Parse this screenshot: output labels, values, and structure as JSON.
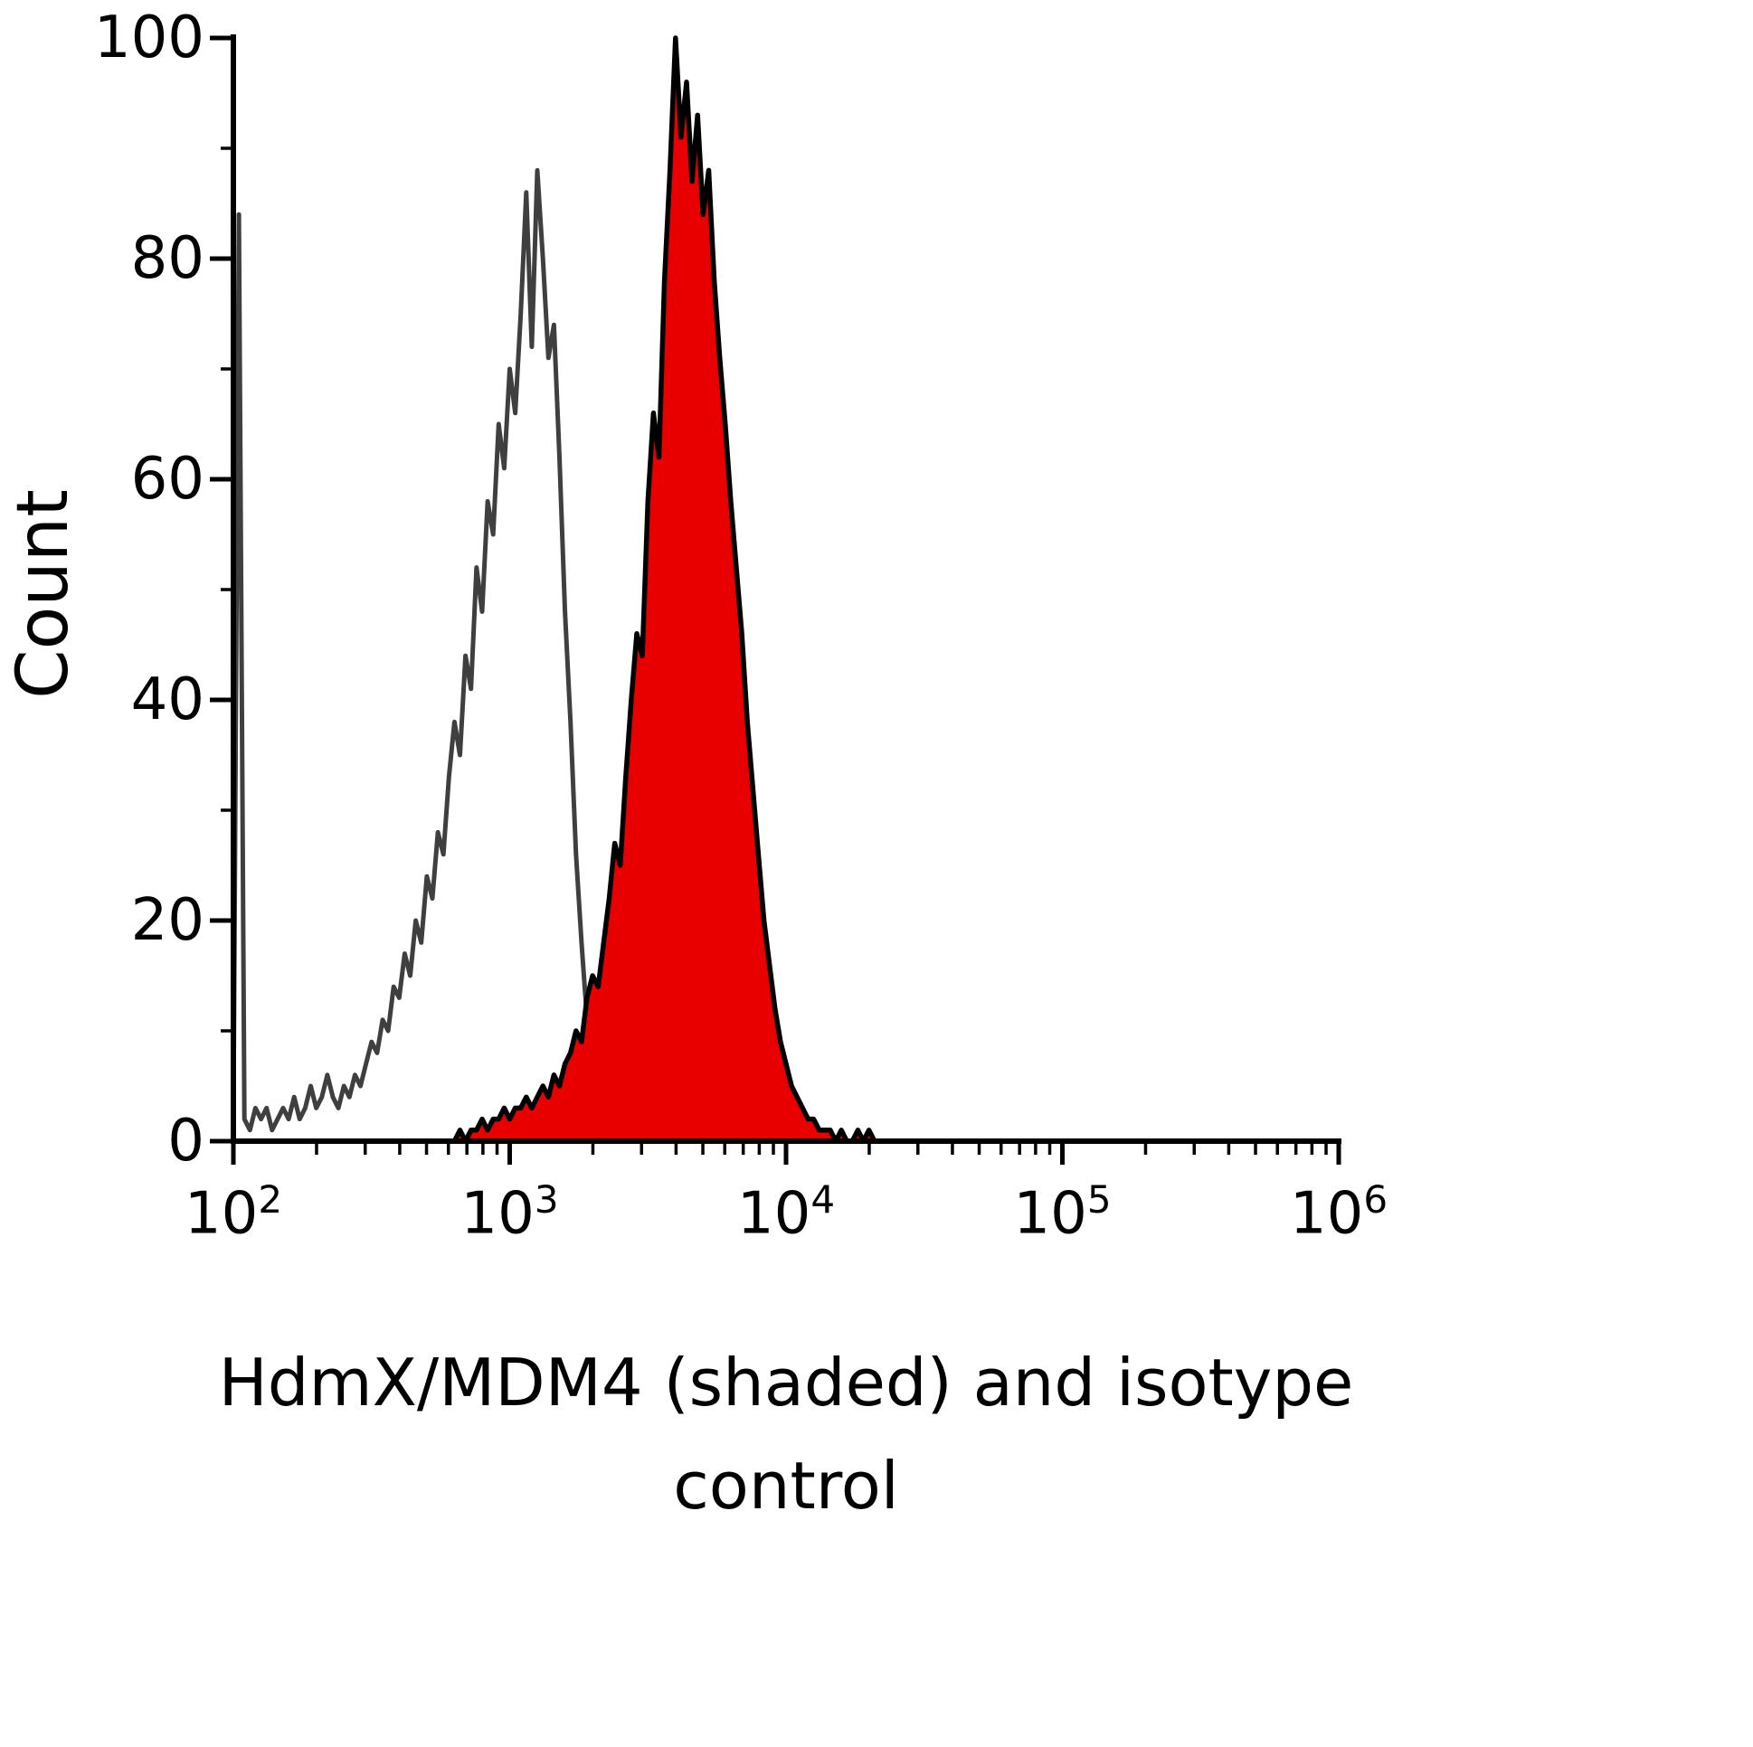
{
  "figure": {
    "background": "#ffffff",
    "y_axis": {
      "title": "Count",
      "min": 0,
      "max": 100,
      "major_ticks": [
        0,
        20,
        40,
        60,
        80,
        100
      ],
      "minor_ticks": [
        10,
        30,
        50,
        70,
        90
      ]
    },
    "x_axis": {
      "title_line1": "HdmX/MDM4 (shaded) and isotype",
      "title_line2": "control",
      "scale": "log10",
      "decade_exponents": [
        2,
        3,
        4,
        5,
        6
      ]
    },
    "colors": {
      "axis": "#000000",
      "isotype_stroke": "#3f3f3f",
      "shaded_fill": "#e80000",
      "shaded_stroke": "#000000",
      "text": "#000000"
    }
  },
  "chart_data": {
    "type": "area",
    "subtype": "flow-cytometry-histogram",
    "title": "",
    "xlabel": "HdmX/MDM4 (shaded) and isotype control",
    "ylabel": "Count",
    "x_scale": "log10",
    "xlim_log10": [
      2,
      6
    ],
    "ylim": [
      0,
      100
    ],
    "grid": false,
    "legend": "none",
    "series": [
      {
        "name": "isotype control",
        "style": "open",
        "color": "#3f3f3f",
        "peak_x": 1200,
        "peak_count": 88,
        "x_log10_start": 2.0,
        "x_log10_step": 0.02,
        "counts": [
          1,
          84,
          2,
          1,
          3,
          2,
          3,
          1,
          2,
          3,
          2,
          4,
          2,
          3,
          5,
          3,
          4,
          6,
          4,
          3,
          5,
          4,
          6,
          5,
          7,
          9,
          8,
          11,
          10,
          14,
          13,
          17,
          15,
          20,
          18,
          24,
          22,
          28,
          26,
          33,
          38,
          35,
          44,
          41,
          52,
          48,
          58,
          55,
          65,
          61,
          70,
          66,
          75,
          86,
          72,
          88,
          80,
          71,
          74,
          62,
          48,
          38,
          26,
          18,
          11,
          7,
          4,
          3,
          2,
          1,
          1,
          0,
          1,
          0,
          0,
          1,
          0,
          0,
          0,
          0,
          0
        ]
      },
      {
        "name": "HdmX/MDM4 (shaded)",
        "style": "filled",
        "fill": "#e80000",
        "stroke": "#000000",
        "peak_x": 4000,
        "peak_count": 100,
        "x_log10_start": 2.8,
        "x_log10_step": 0.02,
        "counts": [
          0,
          1,
          0,
          1,
          1,
          2,
          1,
          2,
          2,
          3,
          2,
          3,
          3,
          4,
          3,
          4,
          5,
          4,
          6,
          5,
          7,
          8,
          10,
          9,
          13,
          15,
          14,
          18,
          22,
          27,
          25,
          33,
          40,
          46,
          44,
          58,
          66,
          62,
          78,
          88,
          100,
          91,
          96,
          87,
          93,
          84,
          88,
          78,
          71,
          65,
          58,
          52,
          46,
          38,
          32,
          26,
          20,
          16,
          12,
          9,
          7,
          5,
          4,
          3,
          2,
          2,
          1,
          1,
          1,
          0,
          1,
          0,
          0,
          1,
          0,
          1,
          0,
          0,
          0,
          0,
          0
        ]
      }
    ]
  }
}
